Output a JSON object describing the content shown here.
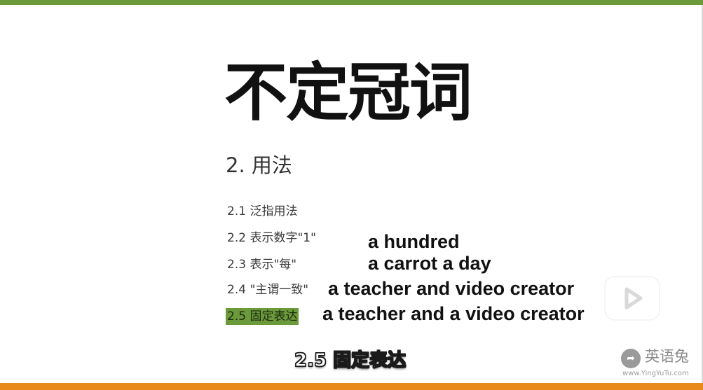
{
  "slide": {
    "title": "不定冠词",
    "section_heading": "2. 用法",
    "menu": [
      {
        "label": "2.1 泛指用法",
        "active": false
      },
      {
        "label": "2.2 表示数字\"1\"",
        "active": false
      },
      {
        "label": "2.3 表示\"每\"",
        "active": false
      },
      {
        "label": "2.4 \"主谓一致\"",
        "active": false
      },
      {
        "label": "2.5 固定表达",
        "active": true
      }
    ],
    "examples": [
      "a hundred",
      "a carrot a day",
      "a teacher and video creator",
      "a teacher and a video creator"
    ]
  },
  "player": {
    "play_icon": "play-icon",
    "subtitle": "2.5 固定表达"
  },
  "watermark": {
    "logo_icon": "rabbit-logo-icon",
    "name": "英语兔",
    "url": "www.YingYuTu.com"
  },
  "colors": {
    "top_bar": "#6b9a3a",
    "bottom_bar": "#e98a1c",
    "highlight": "#6b9a3a"
  }
}
